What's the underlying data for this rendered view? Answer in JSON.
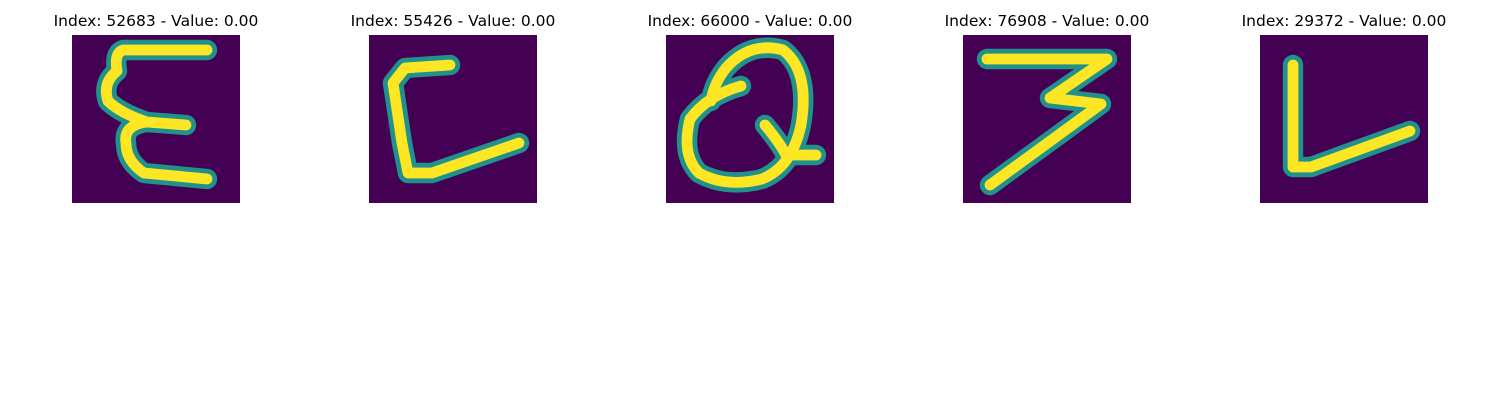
{
  "colors": {
    "background": "#440154",
    "stroke": "#fde725",
    "edge": "#21918c"
  },
  "panels": [
    {
      "title": "Index: 52683 - Value: 0.00",
      "glyph": "E"
    },
    {
      "title": "Index: 55426 - Value: 0.00",
      "glyph": "L"
    },
    {
      "title": "Index: 66000 - Value: 0.00",
      "glyph": "Q"
    },
    {
      "title": "Index: 76908 - Value: 0.00",
      "glyph": "3"
    },
    {
      "title": "Index: 29372 - Value: 0.00",
      "glyph": "L"
    }
  ]
}
